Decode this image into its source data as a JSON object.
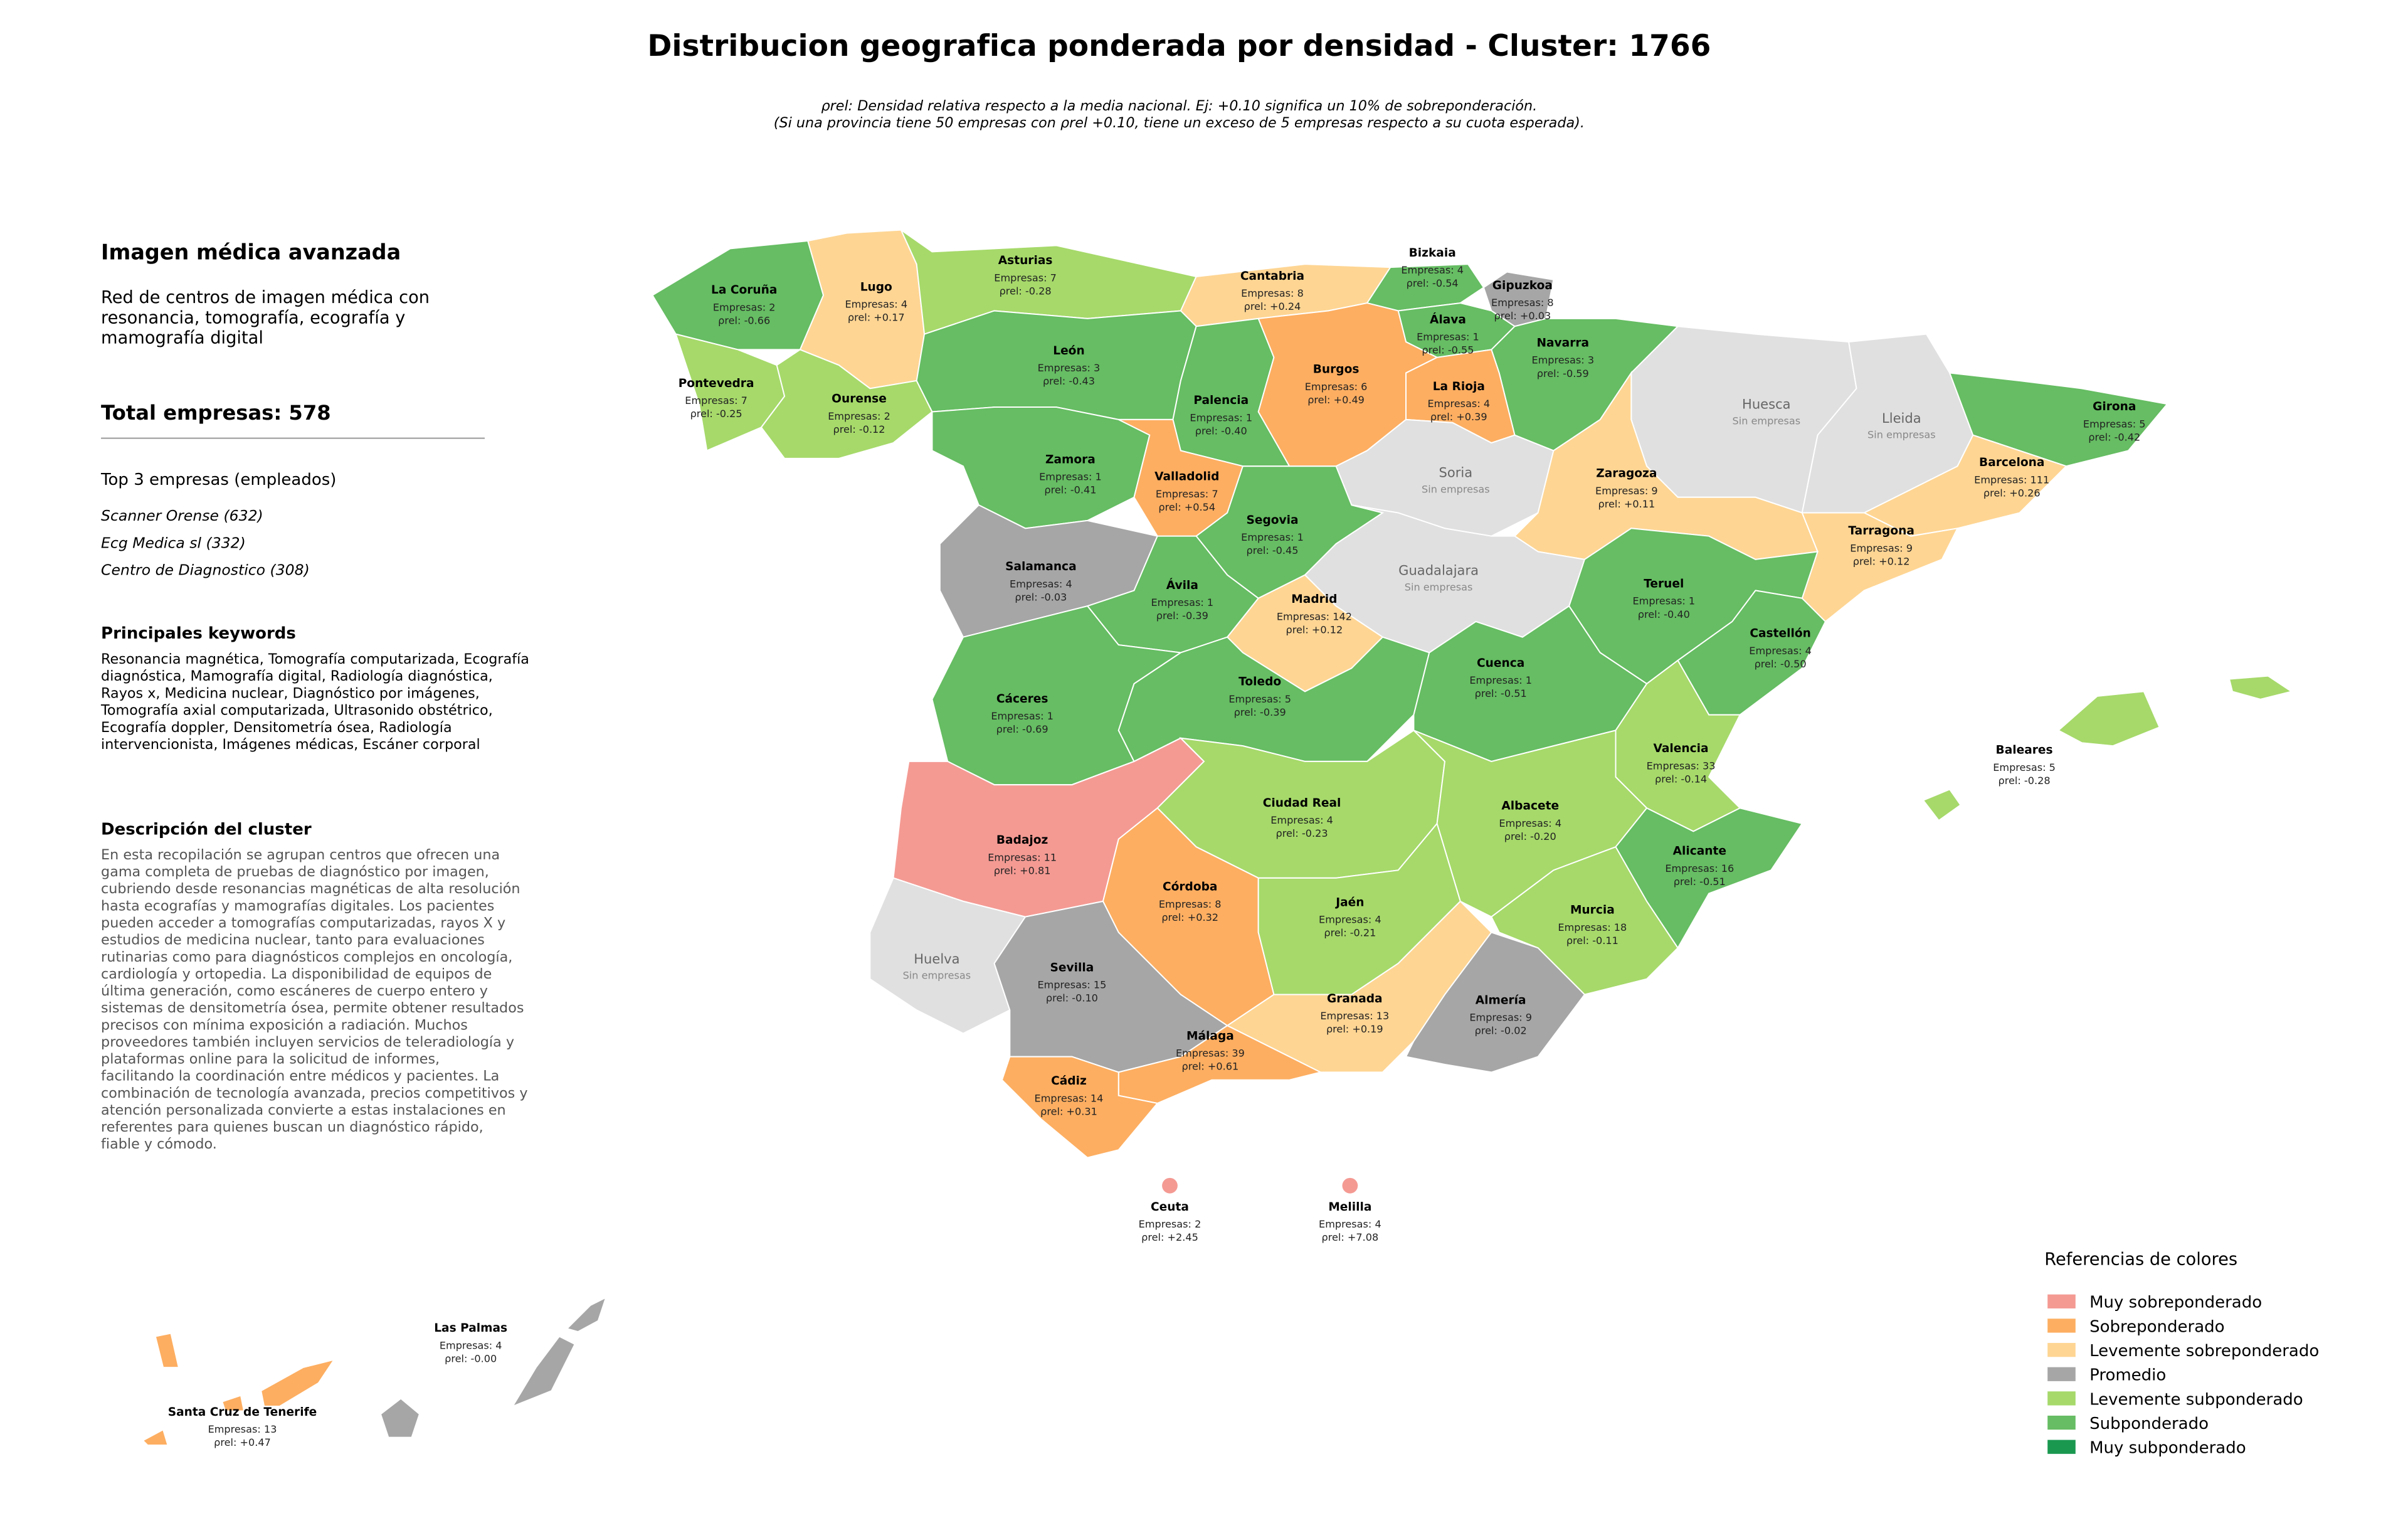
{
  "title": "Distribucion geografica ponderada por densidad - Cluster: 1766",
  "subtitle": [
    "ρrel: Densidad relativa respecto a la media nacional. Ej: +0.10 significa un 10% de sobreponderación.",
    "(Si una provincia tiene 50 empresas con ρrel +0.10, tiene un exceso de 5 empresas respecto a su cuota esperada)."
  ],
  "panel": {
    "cluster_name": "Imagen médica avanzada",
    "summary": [
      "Red de centros de imagen médica con",
      "resonancia, tomografía, ecografía y",
      "mamografía digital"
    ],
    "total": "Total empresas: 578",
    "top_heading": "Top 3 empresas (empleados)",
    "top": [
      "Scanner Orense (632)",
      "Ecg Medica sl (332)",
      "Centro de Diagnostico (308)"
    ],
    "keywords_heading": "Principales keywords",
    "keywords": [
      "Resonancia magnética, Tomografía computarizada, Ecografía",
      "diagnóstica, Mamografía digital, Radiología diagnóstica,",
      "Rayos x, Medicina nuclear, Diagnóstico por imágenes,",
      "Tomografía axial computarizada, Ultrasonido obstétrico,",
      "Ecografía doppler, Densitometría ósea, Radiología",
      "intervencionista, Imágenes médicas, Escáner corporal"
    ],
    "description_heading": "Descripción del cluster",
    "description": [
      "En esta recopilación se agrupan centros que ofrecen una",
      "gama completa de pruebas de diagnóstico por imagen,",
      "cubriendo desde resonancias magnéticas de alta resolución",
      "hasta ecografías y mamografías digitales. Los pacientes",
      "pueden acceder a tomografías computarizadas, rayos X y",
      "estudios de medicina nuclear, tanto para evaluaciones",
      "rutinarias como para diagnósticos complejos en oncología,",
      "cardiología y ortopedia. La disponibilidad de equipos de",
      "última generación, como escáneres de cuerpo entero y",
      "sistemas de densitometría ósea, permite obtener resultados",
      "precisos con mínima exposición a radiación. Muchos",
      "proveedores también incluyen servicios de teleradiología y",
      "plataformas online para la solicitud de informes,",
      "facilitando la coordinación entre médicos y pacientes. La",
      "combinación de tecnología avanzada, precios competitivos y",
      "atención personalizada convierte a estas instalaciones en",
      "referentes para quienes buscan un diagnóstico rápido,",
      "fiable y cómodo."
    ]
  },
  "provinces": [
    {
      "name": "La Coruña",
      "companies": "Empresas: 2",
      "rho": "ρrel: -0.66",
      "color": "#66bd63"
    },
    {
      "name": "Lugo",
      "companies": "Empresas: 4",
      "rho": "ρrel: +0.17",
      "color": "#fed593"
    },
    {
      "name": "Asturias",
      "companies": "Empresas: 7",
      "rho": "ρrel: -0.28",
      "color": "#a6d96a"
    },
    {
      "name": "Cantabria",
      "companies": "Empresas: 8",
      "rho": "ρrel: +0.24",
      "color": "#fed593"
    },
    {
      "name": "Bizkaia",
      "companies": "Empresas: 4",
      "rho": "ρrel: -0.54",
      "color": "#66bd63"
    },
    {
      "name": "Gipuzkoa",
      "companies": "Empresas: 8",
      "rho": "ρrel: +0.03",
      "color": "#a6a6a6"
    },
    {
      "name": "Álava",
      "companies": "Empresas: 1",
      "rho": "ρrel: -0.55",
      "color": "#66bd63"
    },
    {
      "name": "Navarra",
      "companies": "Empresas: 3",
      "rho": "ρrel: -0.59",
      "color": "#66bd63"
    },
    {
      "name": "Pontevedra",
      "companies": "Empresas: 7",
      "rho": "ρrel: -0.25",
      "color": "#a6d96a"
    },
    {
      "name": "Ourense",
      "companies": "Empresas: 2",
      "rho": "ρrel: -0.12",
      "color": "#a6d96a"
    },
    {
      "name": "León",
      "companies": "Empresas: 3",
      "rho": "ρrel: -0.43",
      "color": "#66bd63"
    },
    {
      "name": "Palencia",
      "companies": "Empresas: 1",
      "rho": "ρrel: -0.40",
      "color": "#66bd63"
    },
    {
      "name": "Burgos",
      "companies": "Empresas: 6",
      "rho": "ρrel: +0.49",
      "color": "#fdae61"
    },
    {
      "name": "La Rioja",
      "companies": "Empresas: 4",
      "rho": "ρrel: +0.39",
      "color": "#fdae61"
    },
    {
      "name": "Huesca",
      "note": "Sin empresas",
      "color": "#e0e0e0"
    },
    {
      "name": "Lleida",
      "note": "Sin empresas",
      "color": "#e0e0e0"
    },
    {
      "name": "Girona",
      "companies": "Empresas: 5",
      "rho": "ρrel: -0.42",
      "color": "#66bd63"
    },
    {
      "name": "Zamora",
      "companies": "Empresas: 1",
      "rho": "ρrel: -0.41",
      "color": "#66bd63"
    },
    {
      "name": "Valladolid",
      "companies": "Empresas: 7",
      "rho": "ρrel: +0.54",
      "color": "#fdae61"
    },
    {
      "name": "Soria",
      "note": "Sin empresas",
      "color": "#e0e0e0"
    },
    {
      "name": "Zaragoza",
      "companies": "Empresas: 9",
      "rho": "ρrel: +0.11",
      "color": "#fed593"
    },
    {
      "name": "Barcelona",
      "companies": "Empresas: 111",
      "rho": "ρrel: +0.26",
      "color": "#fed593"
    },
    {
      "name": "Salamanca",
      "companies": "Empresas: 4",
      "rho": "ρrel: -0.03",
      "color": "#a6a6a6"
    },
    {
      "name": "Segovia",
      "companies": "Empresas: 1",
      "rho": "ρrel: -0.45",
      "color": "#66bd63"
    },
    {
      "name": "Guadalajara",
      "note": "Sin empresas",
      "color": "#e0e0e0"
    },
    {
      "name": "Tarragona",
      "companies": "Empresas: 9",
      "rho": "ρrel: +0.12",
      "color": "#fed593"
    },
    {
      "name": "Ávila",
      "companies": "Empresas: 1",
      "rho": "ρrel: -0.39",
      "color": "#66bd63"
    },
    {
      "name": "Madrid",
      "companies": "Empresas: 142",
      "rho": "ρrel: +0.12",
      "color": "#fed593"
    },
    {
      "name": "Teruel",
      "companies": "Empresas: 1",
      "rho": "ρrel: -0.40",
      "color": "#66bd63"
    },
    {
      "name": "Castellón",
      "companies": "Empresas: 4",
      "rho": "ρrel: -0.50",
      "color": "#66bd63"
    },
    {
      "name": "Cáceres",
      "companies": "Empresas: 1",
      "rho": "ρrel: -0.69",
      "color": "#66bd63"
    },
    {
      "name": "Toledo",
      "companies": "Empresas: 5",
      "rho": "ρrel: -0.39",
      "color": "#66bd63"
    },
    {
      "name": "Cuenca",
      "companies": "Empresas: 1",
      "rho": "ρrel: -0.51",
      "color": "#66bd63"
    },
    {
      "name": "Valencia",
      "companies": "Empresas: 33",
      "rho": "ρrel: -0.14",
      "color": "#a6d96a"
    },
    {
      "name": "Baleares",
      "companies": "Empresas: 5",
      "rho": "ρrel: -0.28",
      "color": "#a6d96a"
    },
    {
      "name": "Badajoz",
      "companies": "Empresas: 11",
      "rho": "ρrel: +0.81",
      "color": "#f49a93"
    },
    {
      "name": "Ciudad Real",
      "companies": "Empresas: 4",
      "rho": "ρrel: -0.23",
      "color": "#a6d96a"
    },
    {
      "name": "Albacete",
      "companies": "Empresas: 4",
      "rho": "ρrel: -0.20",
      "color": "#a6d96a"
    },
    {
      "name": "Alicante",
      "companies": "Empresas: 16",
      "rho": "ρrel: -0.51",
      "color": "#66bd63"
    },
    {
      "name": "Córdoba",
      "companies": "Empresas: 8",
      "rho": "ρrel: +0.32",
      "color": "#fdae61"
    },
    {
      "name": "Jaén",
      "companies": "Empresas: 4",
      "rho": "ρrel: -0.21",
      "color": "#a6d96a"
    },
    {
      "name": "Murcia",
      "companies": "Empresas: 18",
      "rho": "ρrel: -0.11",
      "color": "#a6d96a"
    },
    {
      "name": "Huelva",
      "note": "Sin empresas",
      "color": "#e0e0e0"
    },
    {
      "name": "Sevilla",
      "companies": "Empresas: 15",
      "rho": "ρrel: -0.10",
      "color": "#a6a6a6"
    },
    {
      "name": "Granada",
      "companies": "Empresas: 13",
      "rho": "ρrel: +0.19",
      "color": "#fed593"
    },
    {
      "name": "Almería",
      "companies": "Empresas: 9",
      "rho": "ρrel: -0.02",
      "color": "#a6a6a6"
    },
    {
      "name": "Málaga",
      "companies": "Empresas: 39",
      "rho": "ρrel: +0.61",
      "color": "#fdae61"
    },
    {
      "name": "Cádiz",
      "companies": "Empresas: 14",
      "rho": "ρrel: +0.31",
      "color": "#fdae61"
    },
    {
      "name": "Ceuta",
      "companies": "Empresas: 2",
      "rho": "ρrel: +2.45",
      "color": "#f49a93"
    },
    {
      "name": "Melilla",
      "companies": "Empresas: 4",
      "rho": "ρrel: +7.08",
      "color": "#f49a93"
    },
    {
      "name": "Las Palmas",
      "companies": "Empresas: 4",
      "rho": "ρrel: -0.00",
      "color": "#a6a6a6"
    },
    {
      "name": "Santa Cruz de Tenerife",
      "companies": "Empresas: 13",
      "rho": "ρrel: +0.47",
      "color": "#fdae61"
    }
  ],
  "legend": {
    "title": "Referencias de colores",
    "items": [
      {
        "name": "Muy sobreponderado",
        "color": "#f49a93"
      },
      {
        "name": "Sobreponderado",
        "color": "#fdae61"
      },
      {
        "name": "Levemente sobreponderado",
        "color": "#fed593"
      },
      {
        "name": "Promedio",
        "color": "#a6a6a6"
      },
      {
        "name": "Levemente subponderado",
        "color": "#a6d96a"
      },
      {
        "name": "Subponderado",
        "color": "#66bd63"
      },
      {
        "name": "Muy subponderado",
        "color": "#1a9850"
      }
    ]
  }
}
